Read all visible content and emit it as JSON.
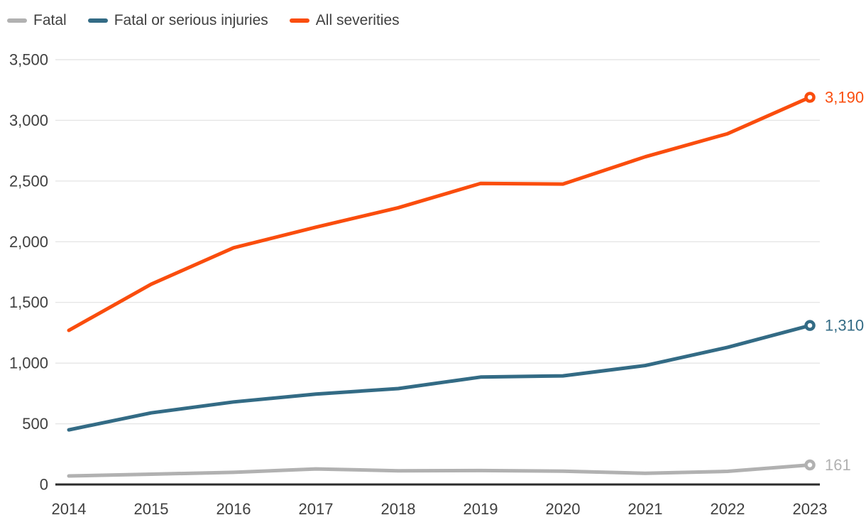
{
  "styles": {
    "background": "#ffffff",
    "text_color": "#404040",
    "grid_color": "#e6e6e6",
    "axis_color": "#2b2b2b"
  },
  "legend": {
    "items": [
      "Fatal",
      "Fatal or serious injuries",
      "All severities"
    ]
  },
  "chart_data": {
    "type": "line",
    "x": [
      2014,
      2015,
      2016,
      2017,
      2018,
      2019,
      2020,
      2021,
      2022,
      2023
    ],
    "x_labels": [
      "2014",
      "2015",
      "2016",
      "2017",
      "2018",
      "2019",
      "2020",
      "2021",
      "2022",
      "2023"
    ],
    "series": [
      {
        "name": "Fatal",
        "slug": "fatal",
        "color": "#b1b1b1",
        "values": [
          70,
          85,
          100,
          128,
          113,
          115,
          110,
          92,
          108,
          161
        ],
        "end_label": "161"
      },
      {
        "name": "Fatal or serious injuries",
        "slug": "fatal-or-serious-injuries",
        "color": "#336b85",
        "values": [
          450,
          590,
          680,
          745,
          790,
          885,
          895,
          980,
          1130,
          1310
        ],
        "end_label": "1,310"
      },
      {
        "name": "All severities",
        "slug": "all-severities",
        "color": "#fa4d0d",
        "values": [
          1270,
          1650,
          1950,
          2120,
          2280,
          2480,
          2475,
          2700,
          2890,
          3190
        ],
        "end_label": "3,190"
      }
    ],
    "ylim": [
      0,
      3500
    ],
    "y_ticks": [
      0,
      500,
      1000,
      1500,
      2000,
      2500,
      3000,
      3500
    ],
    "y_tick_labels": [
      "0",
      "500",
      "1,000",
      "1,500",
      "2,000",
      "2,500",
      "3,000",
      "3,500"
    ],
    "grid": "horizontal",
    "legend_position": "top-left",
    "title": "",
    "xlabel": "",
    "ylabel": ""
  }
}
